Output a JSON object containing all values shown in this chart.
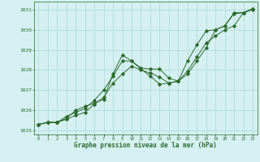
{
  "title": "Graphe pression niveau de la mer (hPa)",
  "background_color": "#d4f0f0",
  "grid_color": "#b8dede",
  "line_color": "#2d6a2d",
  "ylim": [
    1024.8,
    1031.4
  ],
  "xlim": [
    -0.5,
    23.5
  ],
  "yticks": [
    1025,
    1026,
    1027,
    1028,
    1029,
    1030,
    1031
  ],
  "xticks": [
    0,
    1,
    2,
    3,
    4,
    5,
    6,
    7,
    8,
    9,
    10,
    11,
    12,
    13,
    14,
    15,
    16,
    17,
    18,
    19,
    20,
    21,
    22,
    23
  ],
  "series1_x": [
    0,
    1,
    2,
    3,
    4,
    5,
    6,
    7,
    8,
    9,
    10,
    11,
    12,
    13,
    14,
    15,
    16,
    17,
    18,
    19,
    20,
    21,
    22,
    23
  ],
  "series1_y": [
    1025.3,
    1025.4,
    1025.4,
    1025.7,
    1025.9,
    1026.1,
    1026.5,
    1027.0,
    1027.7,
    1028.45,
    1028.45,
    1028.1,
    1028.05,
    1028.05,
    1027.6,
    1027.45,
    1027.8,
    1028.45,
    1029.1,
    1030.0,
    1030.2,
    1030.8,
    1030.85,
    1031.0
  ],
  "series2_x": [
    0,
    1,
    2,
    3,
    4,
    5,
    6,
    7,
    8,
    9,
    10,
    11,
    12,
    13,
    14,
    15,
    16,
    17,
    18,
    19,
    20,
    21,
    22,
    23
  ],
  "series2_y": [
    1025.3,
    1025.4,
    1025.4,
    1025.6,
    1026.0,
    1026.2,
    1026.35,
    1026.55,
    1027.8,
    1028.75,
    1028.45,
    1028.05,
    1027.7,
    1027.3,
    1027.35,
    1027.45,
    1028.45,
    1029.25,
    1029.95,
    1030.0,
    1030.2,
    1030.85,
    1030.85,
    1031.05
  ],
  "series3_x": [
    0,
    1,
    2,
    3,
    4,
    5,
    6,
    7,
    8,
    9,
    10,
    11,
    12,
    13,
    14,
    15,
    16,
    17,
    18,
    19,
    20,
    21,
    22,
    23
  ],
  "series3_y": [
    1025.3,
    1025.4,
    1025.4,
    1025.55,
    1025.75,
    1025.9,
    1026.3,
    1026.65,
    1027.35,
    1027.8,
    1028.2,
    1028.0,
    1027.85,
    1027.65,
    1027.35,
    1027.45,
    1027.95,
    1028.65,
    1029.35,
    1029.7,
    1030.0,
    1030.2,
    1030.85,
    1031.05
  ]
}
